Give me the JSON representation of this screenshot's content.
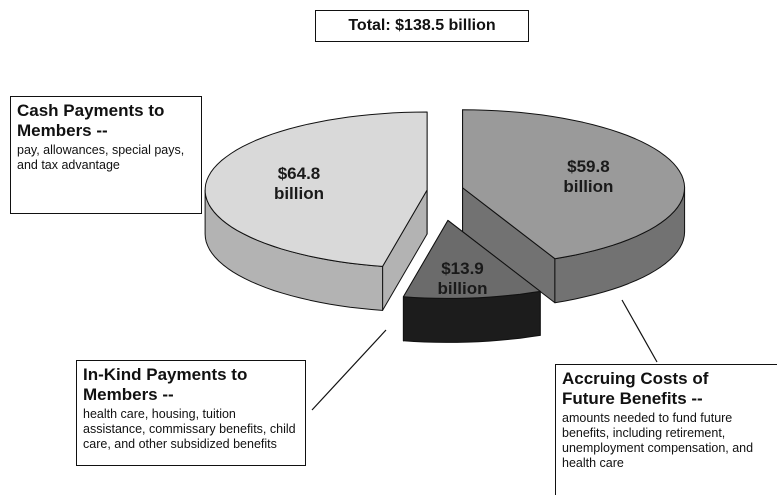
{
  "chart_data": {
    "type": "pie",
    "title": "Total: $138.5 billion",
    "categories": [
      "Cash Payments to Members --",
      "In-Kind Payments to Members --",
      "Accruing Costs of Future Benefits --"
    ],
    "descriptions": [
      "pay, allowances, special pays, and tax advantage",
      "health care, housing, tuition assistance, commissary benefits, child care, and other subsidized benefits",
      "amounts needed to fund future benefits, including retirement, unemployment compensation, and health care"
    ],
    "values": [
      64.8,
      13.9,
      59.8
    ],
    "value_labels": [
      "$64.8 billion",
      "$13.9 billion",
      "$59.8 billion"
    ],
    "colors": [
      "#d9d9d9",
      "#6b6b6b",
      "#9a9a9a"
    ],
    "side_colors": [
      "#b3b3b3",
      "#1c1c1c",
      "#727272"
    ]
  }
}
